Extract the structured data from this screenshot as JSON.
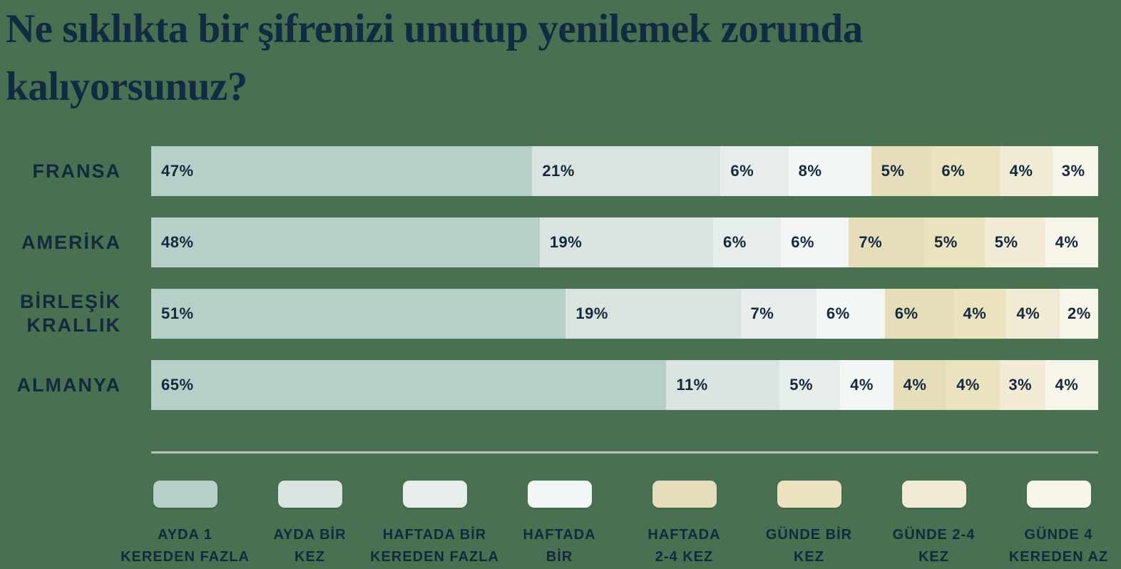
{
  "title": {
    "text": "Ne sıklıkta bir şifrenizi unutup yenilemek zorunda kalıyorsunuz?"
  },
  "colors": {
    "background": "#497151",
    "text": "#14293D",
    "divider": "#B7C0B9"
  },
  "chart_data": {
    "type": "bar",
    "variant": "horizontal-stacked",
    "title": "Ne sıklıkta bir şifrenizi unutup yenilemek zorunda kalıyorsunuz?",
    "unit": "%",
    "axis": "none",
    "grid": false,
    "legend_position": "bottom",
    "categories": [
      "FRANSA",
      "AMERİKA",
      "BİRLEŞİK KRALLIK",
      "ALMANYA"
    ],
    "series": [
      {
        "name": "AYDA 1 KEREDEN FAZLA",
        "color": "#B7CFC9",
        "values": [
          47,
          48,
          51,
          65
        ]
      },
      {
        "name": "AYDA BİR KEZ",
        "color": "#D9E4E1",
        "values": [
          21,
          19,
          19,
          11
        ]
      },
      {
        "name": "HAFTADA BİR KEREDEN FAZLA",
        "color": "#E6EDEA",
        "values": [
          6,
          6,
          7,
          5
        ]
      },
      {
        "name": "HAFTADA BİR",
        "color": "#F2F7F6",
        "values": [
          8,
          6,
          6,
          4
        ]
      },
      {
        "name": "HAFTADA 2-4 KEZ",
        "color": "#E6DEBA",
        "values": [
          5,
          7,
          6,
          4
        ]
      },
      {
        "name": "GÜNDE BİR KEZ",
        "color": "#EBE3C0",
        "values": [
          6,
          5,
          4,
          4
        ]
      },
      {
        "name": "GÜNDE 2-4 KEZ",
        "color": "#F1EBD5",
        "values": [
          4,
          5,
          4,
          3
        ]
      },
      {
        "name": "GÜNDE 4 KEREDEN AZ",
        "color": "#F7F5E9",
        "values": [
          3,
          4,
          2,
          4
        ]
      }
    ],
    "rows": [
      {
        "label": "FRANSA",
        "values": [
          47,
          21,
          6,
          8,
          5,
          6,
          4,
          3
        ]
      },
      {
        "label": "AMERİKA",
        "values": [
          48,
          19,
          6,
          6,
          7,
          5,
          5,
          4
        ]
      },
      {
        "label": "BİRLEŞİK KRALLIK",
        "values": [
          51,
          19,
          7,
          6,
          6,
          4,
          4,
          2
        ]
      },
      {
        "label": "ALMANYA",
        "values": [
          65,
          11,
          5,
          4,
          4,
          4,
          3,
          4
        ]
      }
    ],
    "legend": [
      {
        "line1": "AYDA 1",
        "line2": "KEREDEN FAZLA"
      },
      {
        "line1": "AYDA BİR",
        "line2": "KEZ"
      },
      {
        "line1": "HAFTADA BİR",
        "line2": "KEREDEN FAZLA"
      },
      {
        "line1": "HAFTADA",
        "line2": "BİR"
      },
      {
        "line1": "HAFTADA",
        "line2": "2-4 KEZ"
      },
      {
        "line1": "GÜNDE BİR",
        "line2": "KEZ"
      },
      {
        "line1": "GÜNDE 2-4",
        "line2": "KEZ"
      },
      {
        "line1": "GÜNDE 4",
        "line2": "KEREDEN AZ"
      }
    ]
  }
}
